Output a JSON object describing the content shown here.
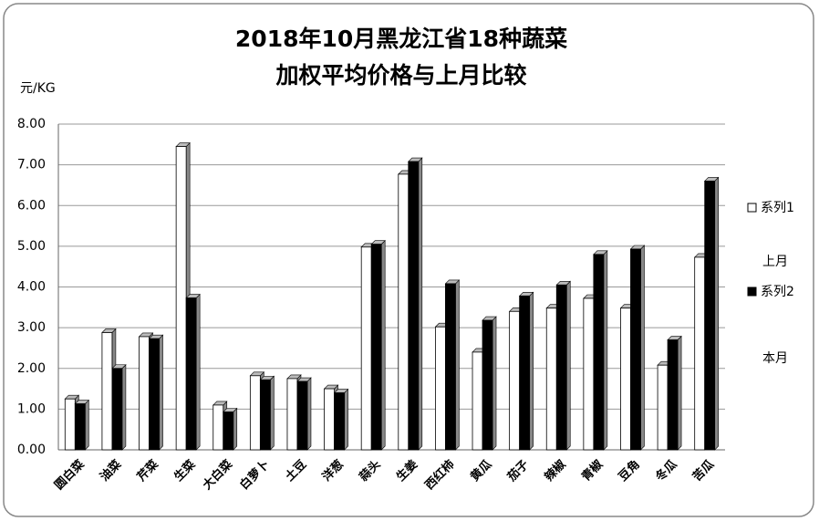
{
  "chart_data": {
    "type": "bar",
    "title": [
      "2018年10月黑龙江省18种蔬菜",
      "加权平均价格与上月比较"
    ],
    "y_axis_label": "元/KG",
    "categories": [
      "圆白菜",
      "油菜",
      "芹菜",
      "生菜",
      "大白菜",
      "白萝卜",
      "土豆",
      "洋葱",
      "蒜头",
      "生姜",
      "西红柿",
      "黄瓜",
      "茄子",
      "辣椒",
      "青椒",
      "豆角",
      "冬瓜",
      "苦瓜"
    ],
    "series": [
      {
        "name": "系列1",
        "color": "#ffffff",
        "values": [
          1.25,
          2.88,
          2.78,
          7.45,
          1.1,
          1.82,
          1.75,
          1.5,
          4.98,
          6.77,
          3.02,
          2.4,
          3.4,
          3.48,
          3.72,
          3.48,
          2.08,
          4.73
        ]
      },
      {
        "name": "系列2",
        "color": "#000000",
        "values": [
          1.13,
          2.0,
          2.73,
          3.73,
          0.93,
          1.72,
          1.68,
          1.4,
          5.05,
          7.08,
          4.08,
          3.18,
          3.78,
          4.05,
          4.8,
          4.93,
          2.7,
          6.6
        ]
      }
    ],
    "annotations": [
      "上月",
      "本月"
    ],
    "ylim": [
      0,
      8
    ],
    "yticks": [
      {
        "value": 0,
        "label": "0.00"
      },
      {
        "value": 1,
        "label": "1.00"
      },
      {
        "value": 2,
        "label": "2.00"
      },
      {
        "value": 3,
        "label": "3.00"
      },
      {
        "value": 4,
        "label": "4.00"
      },
      {
        "value": 5,
        "label": "5.00"
      },
      {
        "value": 6,
        "label": "6.00"
      },
      {
        "value": 7,
        "label": "7.00"
      },
      {
        "value": 8,
        "label": "8.00"
      }
    ],
    "grid": true
  }
}
